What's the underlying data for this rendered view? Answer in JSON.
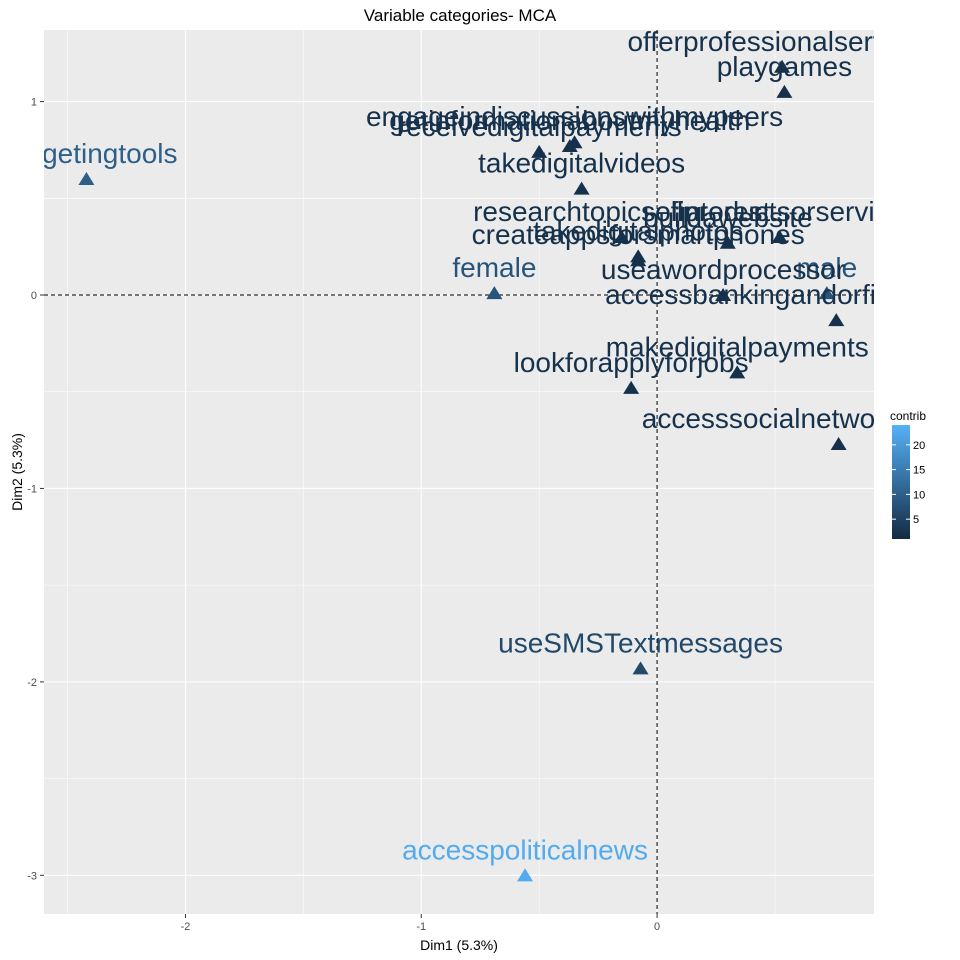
{
  "chart_data": {
    "type": "scatter",
    "title": "Variable categories- MCA",
    "xlabel": "Dim1 (5.3%)",
    "ylabel": "Dim2 (5.3%)",
    "xlim": [
      -2.6,
      0.92
    ],
    "ylim": [
      -3.2,
      1.37
    ],
    "x_ticks": [
      -2,
      -1,
      0
    ],
    "y_ticks": [
      1,
      0,
      -1,
      -2,
      -3
    ],
    "grid": true,
    "reference_lines": {
      "x": 0,
      "y": 0
    },
    "color_scale": {
      "name": "contrib",
      "min": 1,
      "max": 24,
      "ticks": [
        5,
        10,
        15,
        20
      ],
      "low_color": "#132B43",
      "high_color": "#56B1F7"
    },
    "legend_position": "right",
    "points": [
      {
        "label": "offerprofessionalservices",
        "x": 0.53,
        "y": 1.18,
        "contrib": 2
      },
      {
        "label": "playgames",
        "x": 0.54,
        "y": 1.05,
        "contrib": 2
      },
      {
        "label": "receivedigitalpayments",
        "x": -0.5,
        "y": 0.74,
        "contrib": 2
      },
      {
        "label": "engageindiscussionswithmypeers",
        "x": -0.35,
        "y": 0.79,
        "contrib": 2
      },
      {
        "label": "getinformationaboutmyhealth",
        "x": -0.37,
        "y": 0.77,
        "contrib": 2
      },
      {
        "label": "budgetingtools",
        "x": -2.42,
        "y": 0.6,
        "contrib": 10
      },
      {
        "label": "takedigitalvideos",
        "x": -0.32,
        "y": 0.55,
        "contrib": 2
      },
      {
        "label": "researchtopicsofinterest",
        "x": -0.15,
        "y": 0.3,
        "contrib": 2
      },
      {
        "label": "sellproductsorservices",
        "x": 0.52,
        "y": 0.3,
        "contrib": 2
      },
      {
        "label": "buildawebsite",
        "x": 0.3,
        "y": 0.27,
        "contrib": 2
      },
      {
        "label": "takedigitalphotos",
        "x": -0.08,
        "y": 0.2,
        "contrib": 2
      },
      {
        "label": "createappsforsmartphones",
        "x": -0.08,
        "y": 0.18,
        "contrib": 2
      },
      {
        "label": "female",
        "x": -0.69,
        "y": 0.01,
        "contrib": 8
      },
      {
        "label": "male",
        "x": 0.72,
        "y": 0.01,
        "contrib": 8
      },
      {
        "label": "useawordprocessor",
        "x": 0.28,
        "y": 0.0,
        "contrib": 2
      },
      {
        "label": "accessbankingandorfinancialservices",
        "x": 0.76,
        "y": -0.13,
        "contrib": 2
      },
      {
        "label": "makedigitalpayments",
        "x": 0.34,
        "y": -0.4,
        "contrib": 2
      },
      {
        "label": "lookforapplyforjobs",
        "x": -0.11,
        "y": -0.48,
        "contrib": 2
      },
      {
        "label": "accesssocialnetworksFacebook",
        "x": 0.77,
        "y": -0.77,
        "contrib": 2
      },
      {
        "label": "useSMSTextmessages",
        "x": -0.07,
        "y": -1.93,
        "contrib": 6
      },
      {
        "label": "accesspoliticalnews",
        "x": -0.56,
        "y": -3.0,
        "contrib": 23
      }
    ]
  }
}
